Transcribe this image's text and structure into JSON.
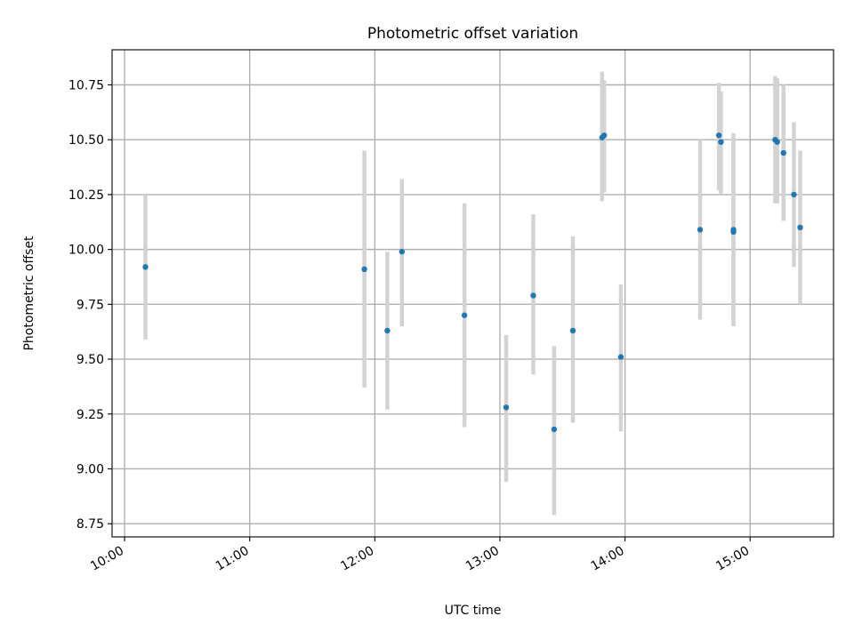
{
  "chart_data": {
    "type": "scatter",
    "title": "Photometric offset variation",
    "xlabel": "UTC time",
    "ylabel": "Photometric offset",
    "x_unit": "UTC hours (HH:MM)",
    "xlim": [
      "09:54",
      "15:40"
    ],
    "ylim": [
      8.69,
      10.91
    ],
    "grid": true,
    "x_ticks": [
      "10:00",
      "11:00",
      "12:00",
      "13:00",
      "14:00",
      "15:00"
    ],
    "y_ticks": [
      "8.75",
      "9.00",
      "9.25",
      "9.50",
      "9.75",
      "10.00",
      "10.25",
      "10.50",
      "10.75"
    ],
    "series": [
      {
        "marker_color": "#1f77b4",
        "errorbar_color": "#d3d3d3",
        "points": [
          {
            "x": "10:10",
            "y": 9.92,
            "ylow": 9.59,
            "yhigh": 10.25
          },
          {
            "x": "11:55",
            "y": 9.91,
            "ylow": 9.37,
            "yhigh": 10.45
          },
          {
            "x": "12:06",
            "y": 9.63,
            "ylow": 9.27,
            "yhigh": 9.99
          },
          {
            "x": "12:13",
            "y": 9.99,
            "ylow": 9.65,
            "yhigh": 10.32
          },
          {
            "x": "12:43",
            "y": 9.7,
            "ylow": 9.19,
            "yhigh": 10.21
          },
          {
            "x": "13:03",
            "y": 9.28,
            "ylow": 8.94,
            "yhigh": 9.61
          },
          {
            "x": "13:16",
            "y": 9.79,
            "ylow": 9.43,
            "yhigh": 10.16
          },
          {
            "x": "13:26",
            "y": 9.18,
            "ylow": 8.79,
            "yhigh": 9.56
          },
          {
            "x": "13:35",
            "y": 9.63,
            "ylow": 9.21,
            "yhigh": 10.06
          },
          {
            "x": "13:49",
            "y": 10.51,
            "ylow": 10.22,
            "yhigh": 10.81
          },
          {
            "x": "13:50",
            "y": 10.52,
            "ylow": 10.26,
            "yhigh": 10.77
          },
          {
            "x": "13:58",
            "y": 9.51,
            "ylow": 9.17,
            "yhigh": 9.84
          },
          {
            "x": "14:36",
            "y": 10.09,
            "ylow": 9.68,
            "yhigh": 10.5
          },
          {
            "x": "14:45",
            "y": 10.52,
            "ylow": 10.27,
            "yhigh": 10.76
          },
          {
            "x": "14:46",
            "y": 10.49,
            "ylow": 10.25,
            "yhigh": 10.72
          },
          {
            "x": "14:52",
            "y": 10.09,
            "ylow": 9.65,
            "yhigh": 10.53
          },
          {
            "x": "14:52",
            "y": 10.08,
            "ylow": 9.66,
            "yhigh": 10.52
          },
          {
            "x": "15:12",
            "y": 10.5,
            "ylow": 10.21,
            "yhigh": 10.79
          },
          {
            "x": "15:13",
            "y": 10.49,
            "ylow": 10.21,
            "yhigh": 10.78
          },
          {
            "x": "15:16",
            "y": 10.44,
            "ylow": 10.13,
            "yhigh": 10.75
          },
          {
            "x": "15:21",
            "y": 10.25,
            "ylow": 9.92,
            "yhigh": 10.58
          },
          {
            "x": "15:24",
            "y": 10.1,
            "ylow": 9.75,
            "yhigh": 10.45
          }
        ]
      }
    ]
  }
}
